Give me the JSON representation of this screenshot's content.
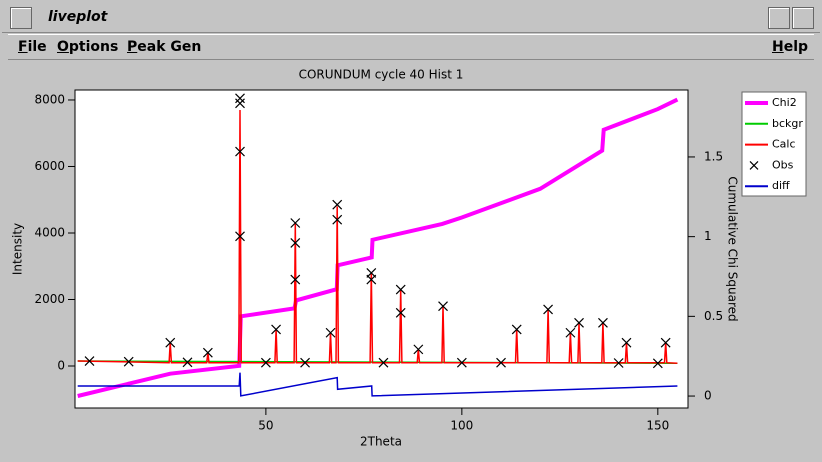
{
  "window": {
    "title": "liveplot",
    "menu": [
      "File",
      "Options",
      "Peak Gen",
      "Help"
    ]
  },
  "chart_data": {
    "type": "line",
    "title": "CORUNDUM cycle 40 Hist 1",
    "xlabel": "2Theta",
    "ylabel": "Intensity",
    "y2label": "Cumulative Chi Squared",
    "xlim": [
      1.3,
      157.7
    ],
    "xticks": [
      50,
      100,
      150
    ],
    "ylim": [
      -1263,
      8300
    ],
    "yticks": [
      0,
      2000,
      4000,
      6000,
      8000
    ],
    "y2lim": [
      -0.075,
      1.92
    ],
    "y2ticks": [
      0,
      0.5,
      1,
      1.5
    ],
    "legend": "outside-right",
    "series": [
      {
        "name": "Chi2",
        "color": "#ff00ff",
        "axis": "y2",
        "x": [
          2,
          25.6,
          43.2,
          43.6,
          57.3,
          57.7,
          68.1,
          68.3,
          77,
          77.2,
          95,
          100,
          120,
          135.8,
          136.2,
          150,
          155
        ],
        "values": [
          0,
          0.14,
          0.19,
          0.5,
          0.55,
          0.6,
          0.67,
          0.82,
          0.87,
          0.98,
          1.08,
          1.12,
          1.3,
          1.54,
          1.67,
          1.8,
          1.86
        ]
      },
      {
        "name": "bckgr",
        "color": "#00cc00",
        "x": [
          2,
          155
        ],
        "values": [
          150,
          80
        ]
      },
      {
        "name": "Calc",
        "color": "#ff0000",
        "x": [
          2,
          25.3,
          25.6,
          25.9,
          34.9,
          35.2,
          35.5,
          43.1,
          43.4,
          43.7,
          52.3,
          52.6,
          52.9,
          57.2,
          57.5,
          57.8,
          66.2,
          66.5,
          66.8,
          67.9,
          68.2,
          68.5,
          76.6,
          76.9,
          77.2,
          84.1,
          84.4,
          84.7,
          88.6,
          88.9,
          89.2,
          94.9,
          95.2,
          95.5,
          113.7,
          114,
          114.3,
          121.7,
          122,
          122.3,
          127.4,
          127.7,
          128,
          129.6,
          129.9,
          130.2,
          135.7,
          136,
          136.3,
          141.7,
          142,
          142.3,
          151.7,
          152,
          152.3,
          155
        ],
        "values": [
          150,
          100,
          700,
          100,
          100,
          400,
          100,
          100,
          7700,
          100,
          100,
          1100,
          100,
          100,
          4300,
          100,
          100,
          1000,
          100,
          100,
          4800,
          100,
          100,
          2800,
          100,
          100,
          2300,
          100,
          100,
          500,
          100,
          100,
          1800,
          100,
          100,
          1100,
          100,
          100,
          1700,
          100,
          100,
          1000,
          100,
          100,
          1300,
          100,
          100,
          1300,
          100,
          100,
          700,
          100,
          100,
          700,
          100,
          80
        ]
      },
      {
        "name": "Obs",
        "color": "#000000",
        "type": "scatter",
        "x": [
          25.6,
          35.2,
          43.4,
          43.4,
          43.4,
          43.4,
          52.6,
          57.5,
          57.5,
          57.5,
          66.5,
          68.2,
          68.2,
          76.9,
          76.9,
          84.4,
          84.4,
          88.9,
          95.2,
          114,
          122,
          127.7,
          129.9,
          136,
          142,
          152,
          5,
          15,
          30,
          50,
          60,
          80,
          100,
          110,
          140,
          150
        ],
        "values": [
          700,
          400,
          8050,
          7900,
          6450,
          3900,
          1100,
          4300,
          3700,
          2600,
          1000,
          4850,
          4400,
          2800,
          2600,
          2300,
          1600,
          500,
          1800,
          1100,
          1700,
          1000,
          1300,
          1300,
          700,
          700,
          150,
          130,
          110,
          100,
          100,
          100,
          100,
          100,
          90,
          80
        ]
      },
      {
        "name": "diff",
        "color": "#0000cc",
        "x": [
          2,
          43.2,
          43.4,
          43.6,
          68.2,
          68.3,
          77,
          77.1,
          155
        ],
        "values": [
          -600,
          -600,
          -200,
          -900,
          -350,
          -700,
          -600,
          -900,
          -600
        ]
      }
    ]
  }
}
